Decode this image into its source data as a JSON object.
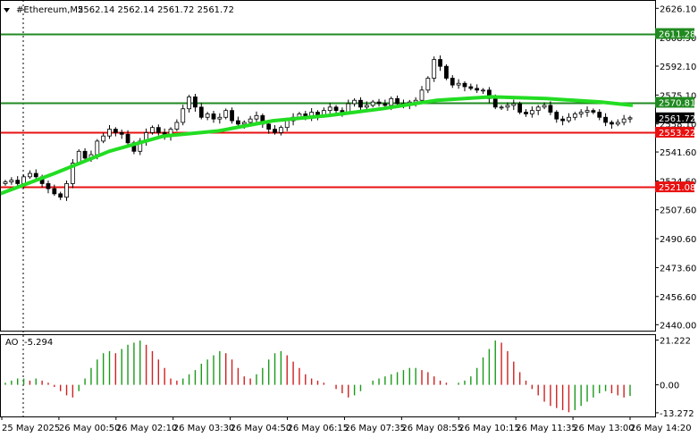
{
  "header": {
    "symbol": "#Ethereum,M5",
    "ohlc": "2562.14 2562.14 2561.72 2561.72"
  },
  "ao_panel": {
    "label": "AO",
    "value": "-5.294",
    "ticks": [
      "21.222",
      "0.00",
      "-13.272"
    ]
  },
  "chart_data": {
    "type": "candlestick",
    "symbol": "#Ethereum",
    "timeframe": "M5",
    "price_axis": {
      "range": [
        2436.5,
        2631.0
      ],
      "ticks": [
        "2626.10",
        "2608.90",
        "2592.10",
        "2575.10",
        "2558.10",
        "2541.60",
        "2524.60",
        "2507.60",
        "2490.60",
        "2473.60",
        "2456.60",
        "2440.00"
      ]
    },
    "time_labels": [
      "25 May 2025",
      "26 May 00:50",
      "26 May 02:10",
      "26 May 03:30",
      "26 May 04:50",
      "26 May 06:15",
      "26 May 07:35",
      "26 May 08:55",
      "26 May 10:15",
      "26 May 11:35",
      "26 May 13:00",
      "26 May 14:20"
    ],
    "horizontal_levels": [
      {
        "price": 2611.28,
        "label": "2611.28",
        "color": "#208a20"
      },
      {
        "price": 2570.81,
        "label": "2570.81",
        "color": "#208a20"
      },
      {
        "price": 2553.22,
        "label": "2553.22",
        "color": "#e81010"
      },
      {
        "price": 2521.08,
        "label": "2521.08",
        "color": "#e81010"
      }
    ],
    "current_price": {
      "price": 2561.72,
      "label": "2561.72"
    },
    "close": [
      2524,
      2525,
      2523,
      2527,
      2529,
      2527,
      2523,
      2520,
      2517,
      2515,
      2523,
      2535,
      2542,
      2538,
      2540,
      2548,
      2551,
      2555,
      2553,
      2552,
      2547,
      2542,
      2548,
      2553,
      2556,
      2553,
      2551,
      2555,
      2559,
      2567,
      2574,
      2568,
      2562,
      2564,
      2561,
      2562,
      2566,
      2560,
      2558,
      2559,
      2561,
      2563,
      2558,
      2555,
      2553,
      2556,
      2560,
      2562,
      2564,
      2562,
      2565,
      2563,
      2566,
      2568,
      2566,
      2565,
      2570,
      2572,
      2568,
      2569,
      2571,
      2570,
      2569,
      2573,
      2570,
      2569,
      2571,
      2572,
      2578,
      2585,
      2596,
      2592,
      2585,
      2581,
      2582,
      2580,
      2579,
      2578,
      2578,
      2573,
      2568,
      2568,
      2569,
      2570,
      2565,
      2564,
      2566,
      2568,
      2569,
      2565,
      2561,
      2560,
      2562,
      2564,
      2565,
      2566,
      2565,
      2562,
      2559,
      2558,
      2559,
      2561,
      2561.72
    ],
    "ma": {
      "color": "#22dd22",
      "values": [
        2517,
        2529,
        2542,
        2551,
        2554,
        2560,
        2563,
        2567,
        2572,
        2574,
        2573,
        2571,
        2569
      ]
    },
    "ao": {
      "values": [
        1,
        2,
        3,
        3,
        2,
        3,
        2,
        1,
        -1,
        -3,
        -5,
        -6,
        -3,
        3,
        8,
        12,
        15,
        16,
        15,
        17,
        19,
        20,
        21,
        19,
        16,
        12,
        8,
        3,
        2,
        3,
        5,
        7,
        10,
        12,
        14,
        16,
        15,
        12,
        8,
        4,
        3,
        5,
        8,
        12,
        15,
        16,
        14,
        11,
        8,
        5,
        3,
        2,
        1,
        0,
        -2,
        -4,
        -6,
        -5,
        -3,
        0,
        2,
        3,
        4,
        5,
        6,
        7,
        8,
        8,
        7,
        6,
        4,
        2,
        1,
        0,
        1,
        2,
        4,
        8,
        13,
        17,
        21,
        20,
        16,
        11,
        6,
        2,
        -2,
        -5,
        -8,
        -10,
        -11,
        -12,
        -13,
        -12,
        -10,
        -8,
        -6,
        -4,
        -3,
        -4,
        -5,
        -6,
        -5.294
      ],
      "ylim": [
        -15,
        24
      ]
    }
  }
}
